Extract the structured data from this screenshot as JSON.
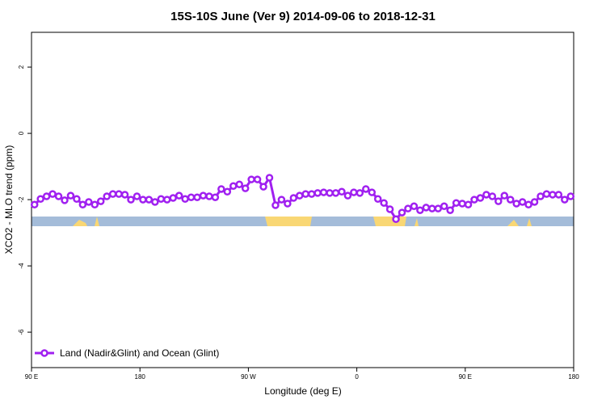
{
  "chart_data": {
    "type": "line",
    "title": "15S-10S June (Ver 9)   2014-09-06 to 2018-12-31",
    "x_label": "Longitude (deg E)",
    "y_label": "XCO2 - MLO trend (ppm)",
    "x": [
      92.5,
      97.5,
      102.5,
      107.5,
      112.5,
      117.5,
      122.5,
      127.5,
      132.5,
      137.5,
      142.5,
      147.5,
      152.5,
      157.5,
      162.5,
      167.5,
      172.5,
      177.5,
      182.5,
      187.5,
      192.5,
      197.5,
      202.5,
      207.5,
      212.5,
      217.5,
      222.5,
      227.5,
      232.5,
      237.5,
      242.5,
      247.5,
      252.5,
      257.5,
      262.5,
      267.5,
      272.5,
      277.5,
      282.5,
      287.5,
      292.5,
      297.5,
      302.5,
      307.5,
      312.5,
      317.5,
      322.5,
      327.5,
      332.5,
      337.5,
      342.5,
      347.5,
      352.5,
      357.5,
      362.5,
      367.5,
      372.5,
      377.5,
      382.5,
      387.5,
      392.5,
      397.5,
      402.5,
      407.5,
      412.5,
      417.5,
      422.5,
      427.5,
      432.5,
      437.5,
      442.5,
      447.5,
      452.5,
      457.5,
      462.5,
      467.5,
      472.5,
      477.5,
      482.5,
      487.5,
      492.5,
      497.5,
      502.5,
      507.5,
      512.5,
      517.5,
      522.5,
      527.5,
      532.5,
      537.5
    ],
    "series": [
      {
        "name": "Land (Nadir&Glint) and Ocean (Glint)",
        "color": "#a020f0",
        "values": [
          -2.15,
          -1.98,
          -1.9,
          -1.83,
          -1.9,
          -2.02,
          -1.88,
          -1.98,
          -2.15,
          -2.07,
          -2.15,
          -2.05,
          -1.9,
          -1.83,
          -1.83,
          -1.85,
          -2.0,
          -1.9,
          -2.0,
          -2.0,
          -2.07,
          -1.98,
          -2.0,
          -1.95,
          -1.88,
          -1.98,
          -1.93,
          -1.93,
          -1.88,
          -1.9,
          -1.93,
          -1.68,
          -1.76,
          -1.59,
          -1.54,
          -1.66,
          -1.39,
          -1.39,
          -1.61,
          -1.34,
          -2.17,
          -2.0,
          -2.12,
          -1.95,
          -1.88,
          -1.83,
          -1.83,
          -1.8,
          -1.78,
          -1.8,
          -1.8,
          -1.76,
          -1.88,
          -1.78,
          -1.8,
          -1.68,
          -1.78,
          -1.98,
          -2.1,
          -2.29,
          -2.59,
          -2.39,
          -2.27,
          -2.2,
          -2.32,
          -2.24,
          -2.27,
          -2.27,
          -2.2,
          -2.32,
          -2.1,
          -2.12,
          -2.15,
          -2.0,
          -1.95,
          -1.85,
          -1.9,
          -2.05,
          -1.88,
          -2.0,
          -2.12,
          -2.07,
          -2.15,
          -2.07,
          -1.9,
          -1.83,
          -1.85,
          -1.85,
          -2.0,
          -1.9
        ]
      }
    ],
    "xlim": [
      90,
      540
    ],
    "xticks": [
      {
        "value": 90,
        "label": "90 E"
      },
      180,
      {
        "value": 270,
        "label": "90 W"
      },
      {
        "value": 360,
        "label": "0"
      },
      {
        "value": 450,
        "label": "90 E"
      },
      {
        "value": 540,
        "label": "180"
      }
    ],
    "ylim": [
      -7.07,
      3.05
    ],
    "yticks": [
      -6,
      -4,
      -2,
      0,
      2
    ],
    "legend": "bottom-left"
  }
}
